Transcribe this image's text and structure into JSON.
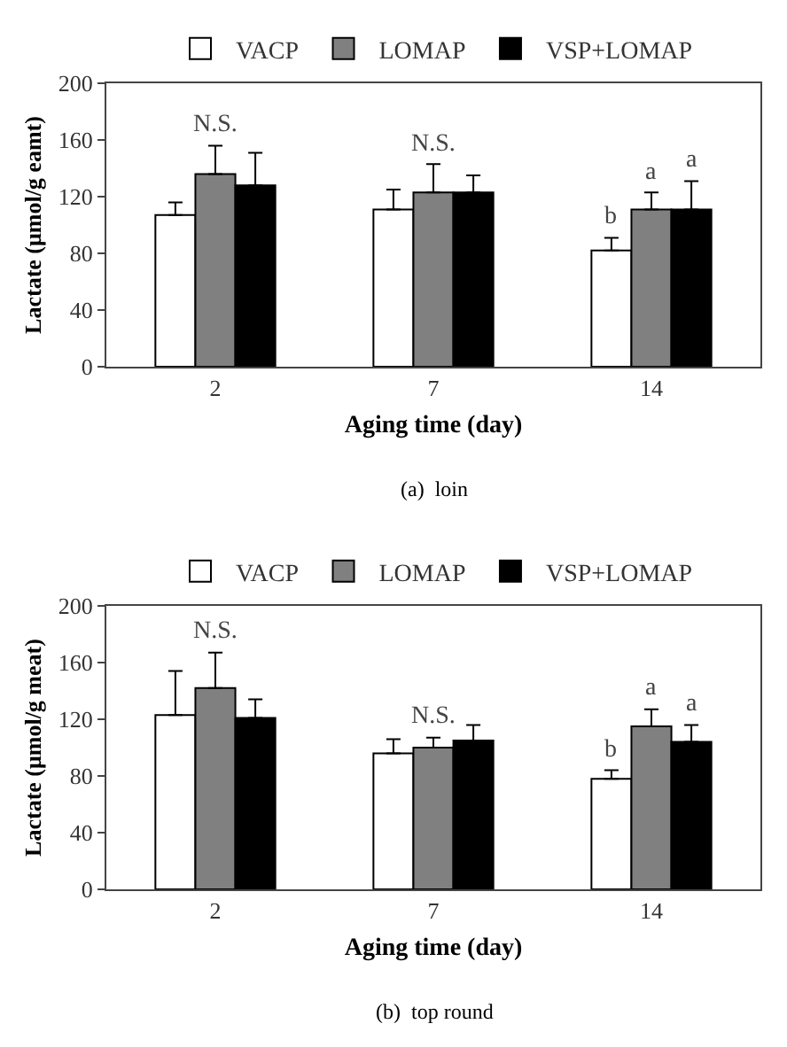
{
  "chart_data": [
    {
      "type": "bar",
      "xlabel": "Aging time (day)",
      "ylabel": "Lactate (μmol/g eamt)",
      "categories": [
        "2",
        "7",
        "14"
      ],
      "ylim": [
        0,
        200
      ],
      "yticks": [
        0,
        40,
        80,
        120,
        160,
        200
      ],
      "grid": false,
      "legend": "top",
      "series": [
        {
          "name": "VACP",
          "color": "#ffffff",
          "values": [
            107,
            111,
            82
          ],
          "errors": [
            9,
            14,
            9
          ],
          "value_labels": [
            null,
            null,
            "b"
          ]
        },
        {
          "name": "LOMAP",
          "color": "#808080",
          "values": [
            136,
            123,
            111
          ],
          "errors": [
            20,
            20,
            12
          ],
          "value_labels": [
            null,
            null,
            "a"
          ]
        },
        {
          "name": "VSP+LOMAP",
          "color": "#000000",
          "values": [
            128,
            123,
            111
          ],
          "errors": [
            23,
            12,
            20
          ],
          "value_labels": [
            null,
            null,
            "a"
          ]
        }
      ],
      "annotations": [
        {
          "text": "N.S.",
          "x": "2",
          "y": 156
        },
        {
          "text": "N.S.",
          "x": "7",
          "y": 143
        },
        "(a)  loin"
      ]
    },
    {
      "type": "bar",
      "xlabel": "Aging time (day)",
      "ylabel": "Lactate (μmol/g meat)",
      "categories": [
        "2",
        "7",
        "14"
      ],
      "ylim": [
        0,
        200
      ],
      "yticks": [
        0,
        40,
        80,
        120,
        160,
        200
      ],
      "grid": false,
      "legend": "top",
      "series": [
        {
          "name": "VACP",
          "color": "#ffffff",
          "values": [
            123,
            96,
            78
          ],
          "errors": [
            31,
            10,
            6
          ],
          "value_labels": [
            null,
            null,
            "b"
          ]
        },
        {
          "name": "LOMAP",
          "color": "#808080",
          "values": [
            142,
            100,
            115
          ],
          "errors": [
            25,
            7,
            12
          ],
          "value_labels": [
            null,
            null,
            "a"
          ]
        },
        {
          "name": "VSP+LOMAP",
          "color": "#000000",
          "values": [
            121,
            105,
            104
          ],
          "errors": [
            13,
            11,
            12
          ],
          "value_labels": [
            null,
            null,
            "a"
          ]
        }
      ],
      "annotations": [
        {
          "text": "N.S.",
          "x": "2",
          "y": 167
        },
        {
          "text": "N.S.",
          "x": "7",
          "y": 107
        },
        "(b)  top round"
      ]
    }
  ]
}
